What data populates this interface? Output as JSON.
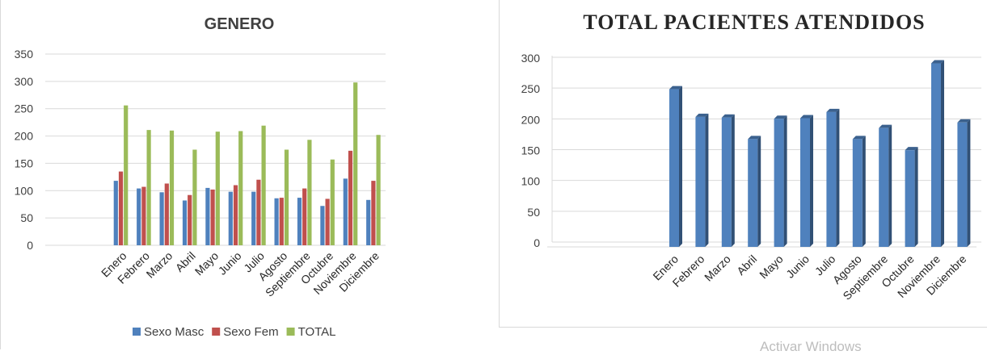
{
  "chart_data": [
    {
      "type": "bar",
      "title": "GENERO",
      "categories": [
        "Enero",
        "Febrero",
        "Marzo",
        "Abril",
        "Mayo",
        "Junio",
        "Julio",
        "Agosto",
        "Septiembre",
        "Octubre",
        "Noviembre",
        "Diciembre"
      ],
      "series": [
        {
          "name": "Sexo Masc",
          "color": "#4f81bd",
          "values": [
            118,
            104,
            97,
            82,
            105,
            98,
            98,
            86,
            87,
            72,
            122,
            83
          ]
        },
        {
          "name": "Sexo Fem",
          "color": "#c0504d",
          "values": [
            135,
            107,
            113,
            92,
            102,
            110,
            120,
            87,
            104,
            85,
            173,
            118
          ]
        },
        {
          "name": "TOTAL",
          "color": "#9bbb59",
          "values": [
            256,
            211,
            210,
            175,
            208,
            209,
            219,
            175,
            193,
            157,
            298,
            202
          ]
        }
      ],
      "yticks": [
        0,
        50,
        100,
        150,
        200,
        250,
        300,
        350
      ],
      "ylim": [
        0,
        350
      ],
      "grid": true,
      "legend_position": "bottom"
    },
    {
      "type": "bar",
      "title": "TOTAL PACIENTES ATENDIDOS",
      "categories": [
        "Enero",
        "Febrero",
        "Marzo",
        "Abril",
        "Mayo",
        "Junio",
        "Julio",
        "Agosto",
        "Septiembre",
        "Octubre",
        "Noviembre",
        "Diciembre"
      ],
      "series": [
        {
          "color": "#4f81bd",
          "values": [
            256,
            211,
            210,
            175,
            208,
            209,
            219,
            175,
            193,
            157,
            298,
            202
          ]
        }
      ],
      "yticks": [
        0,
        50,
        100,
        150,
        200,
        250,
        300
      ],
      "ylim": [
        0,
        300
      ],
      "grid": true,
      "style": "3d-column"
    }
  ],
  "watermark": "Activar Windows"
}
